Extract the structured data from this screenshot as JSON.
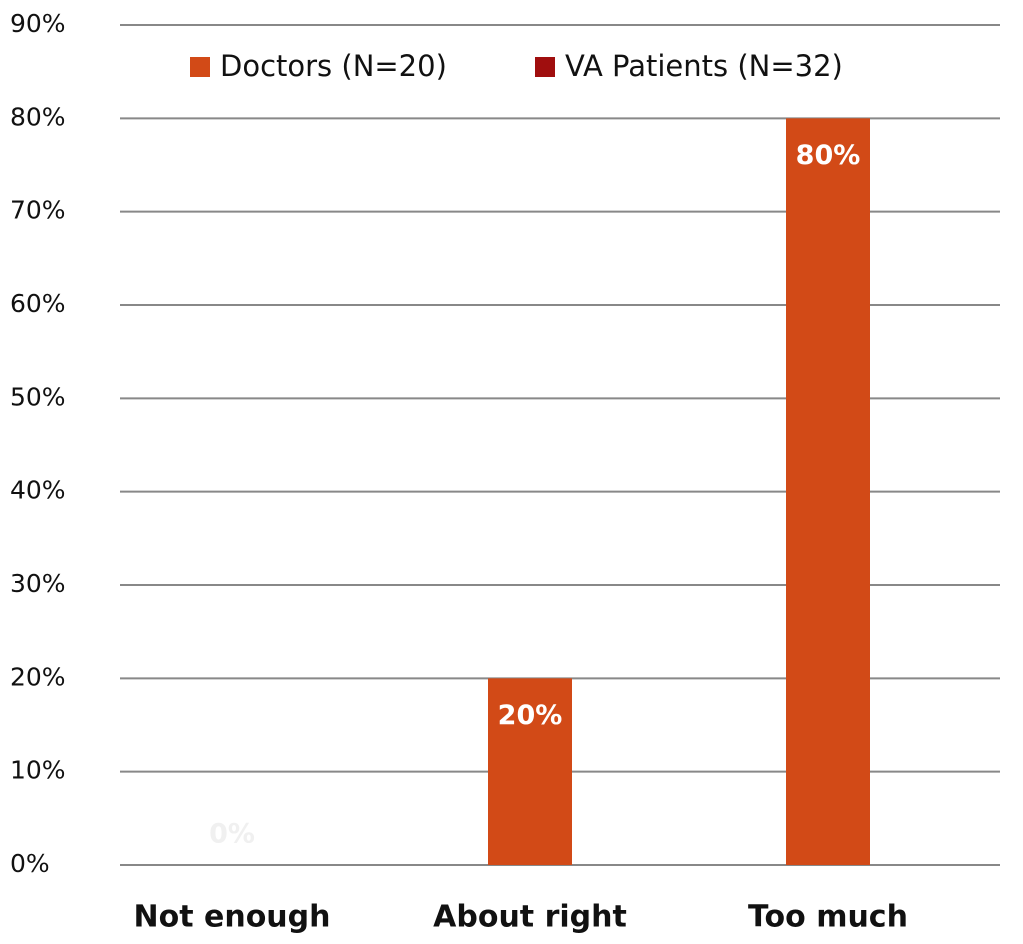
{
  "chart_data": {
    "type": "bar",
    "categories": [
      "Not enough",
      "About right",
      "Too much"
    ],
    "series": [
      {
        "name": "Doctors (N=20)",
        "color": "#d24a17",
        "values": [
          0,
          20,
          80
        ],
        "value_labels": [
          "0%",
          "20%",
          "80%"
        ]
      },
      {
        "name": "VA Patients (N=32)",
        "color": "#a00e0e",
        "values": [
          null,
          null,
          null
        ]
      }
    ],
    "ylim": [
      0,
      90
    ],
    "yticks": [
      {
        "value": 0,
        "label": "0%"
      },
      {
        "value": 10,
        "label": "10%"
      },
      {
        "value": 20,
        "label": "20%"
      },
      {
        "value": 30,
        "label": "30%"
      },
      {
        "value": 40,
        "label": "40%"
      },
      {
        "value": 50,
        "label": "50%"
      },
      {
        "value": 60,
        "label": "60%"
      },
      {
        "value": 70,
        "label": "70%"
      },
      {
        "value": 80,
        "label": "80%"
      },
      {
        "value": 90,
        "label": "90%"
      }
    ],
    "grid": true
  }
}
